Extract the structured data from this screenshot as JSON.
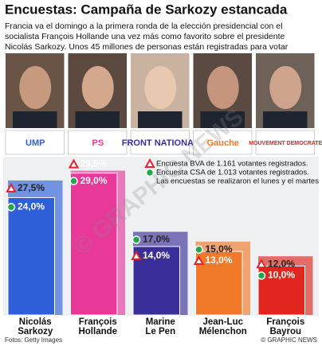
{
  "chart_data": {
    "type": "bar",
    "title": "Encuestas: Campaña de Sarkozy estancada",
    "subtitle": [
      "Francia va el domingo a la primera ronda de la elección presidencial con el",
      "socialista François Hollande una vez más como favorito sobre el presidente",
      "Nicolás Sarkozy. Unos 45 millones de personas están registradas para votar"
    ],
    "categories": [
      [
        "Nicolás",
        "Sarkozy"
      ],
      [
        "François",
        "Hollande"
      ],
      [
        "Marine",
        "Le Pen"
      ],
      [
        "Jean-Luc",
        "Mélenchon"
      ],
      [
        "François",
        "Bayrou"
      ]
    ],
    "party_logos": [
      "UMP",
      "PS",
      "FRONT NATIONAL",
      "Gauche",
      "MOUVEMENT DEMOCRATE"
    ],
    "bar_colors": [
      "#2f5fd8",
      "#e8399a",
      "#3a2f9a",
      "#f07a2a",
      "#e0261e"
    ],
    "series": [
      {
        "name": "Encuesta BVA de 1.161 votantes registrados.",
        "marker": "triangle",
        "color": "#e8202a",
        "values": [
          27.5,
          29.5,
          14.0,
          13.0,
          12.0
        ],
        "value_labels": [
          "27,5%",
          "29,5%",
          "14,0%",
          "13,0%",
          "12,0%"
        ]
      },
      {
        "name": "Encuesta CSA de 1.013 votantes registrados.",
        "marker": "circle",
        "color": "#22a84a",
        "values": [
          24.0,
          29.0,
          17.0,
          15.0,
          10.0
        ],
        "value_labels": [
          "24,0%",
          "29,0%",
          "17,0%",
          "15,0%",
          "10,0%"
        ]
      }
    ],
    "note": "Las encuestas se realizaron el lunes y el martes",
    "source": "Fotos: Getty Images",
    "credit": "© GRAPHIC NEWS",
    "watermark": "© GRAPHIC NEWS"
  }
}
